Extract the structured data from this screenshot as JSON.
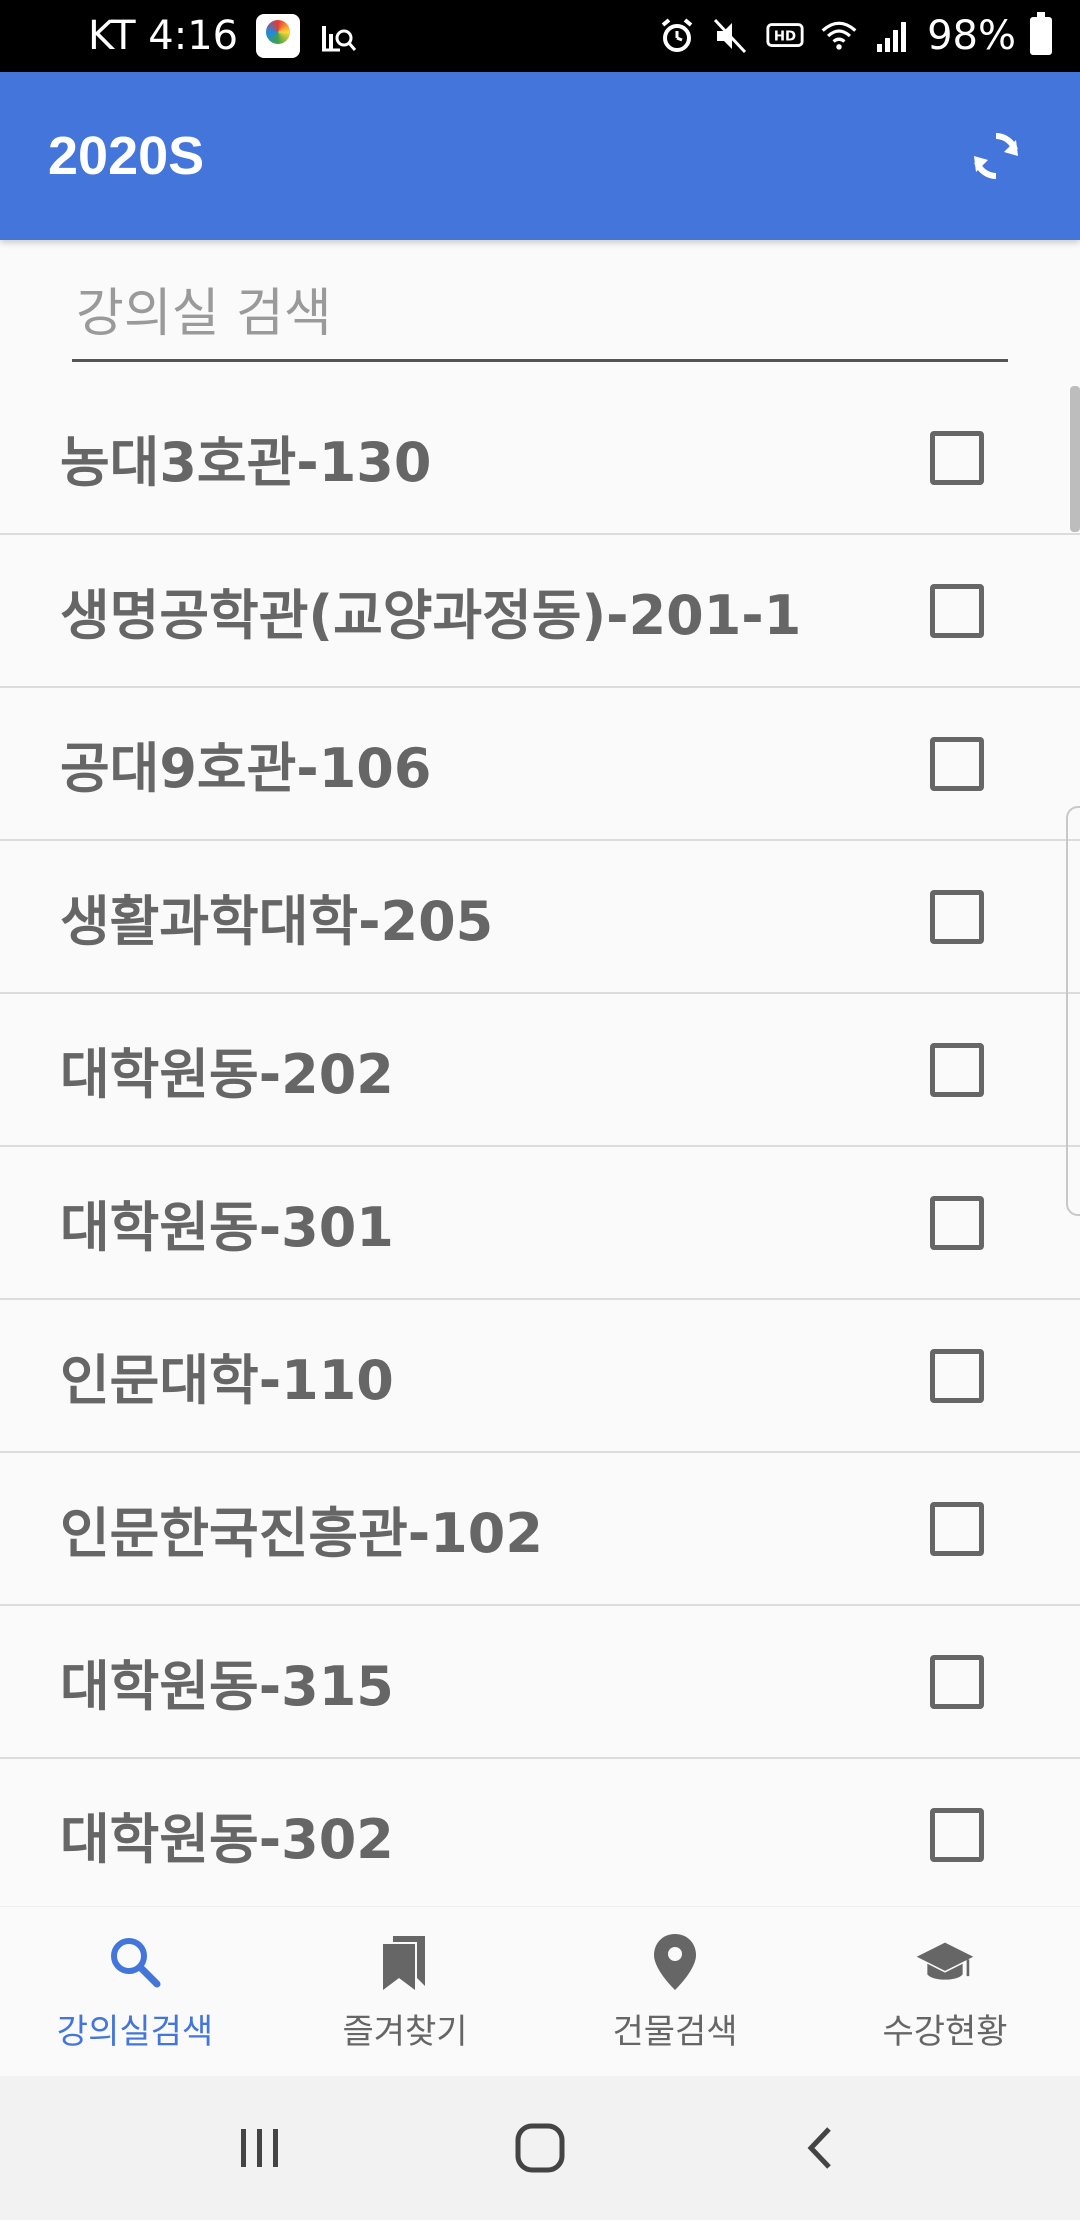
{
  "status_bar": {
    "carrier_time": "KT 4:16",
    "battery": "98%"
  },
  "app_bar": {
    "title": "2020S",
    "refresh_icon": "refresh-icon"
  },
  "search": {
    "placeholder": "강의실 검색",
    "value": ""
  },
  "rooms": [
    {
      "label": "농대3호관-130",
      "checked": false
    },
    {
      "label": "생명공학관(교양과정동)-201-1",
      "checked": false
    },
    {
      "label": "공대9호관-106",
      "checked": false
    },
    {
      "label": "생활과학대학-205",
      "checked": false
    },
    {
      "label": "대학원동-202",
      "checked": false
    },
    {
      "label": "대학원동-301",
      "checked": false
    },
    {
      "label": "인문대학-110",
      "checked": false
    },
    {
      "label": "인문한국진흥관-102",
      "checked": false
    },
    {
      "label": "대학원동-315",
      "checked": false
    },
    {
      "label": "대학원동-302",
      "checked": false
    }
  ],
  "bottom_nav": {
    "items": [
      {
        "label": "강의실검색",
        "icon": "search-icon",
        "active": true
      },
      {
        "label": "즐겨찾기",
        "icon": "bookmark-icon",
        "active": false
      },
      {
        "label": "건물검색",
        "icon": "location-pin-icon",
        "active": false
      },
      {
        "label": "수강현황",
        "icon": "graduation-cap-icon",
        "active": false
      }
    ]
  },
  "colors": {
    "primary": "#4375db",
    "text_gray": "#666666",
    "active_nav": "#4375db"
  }
}
